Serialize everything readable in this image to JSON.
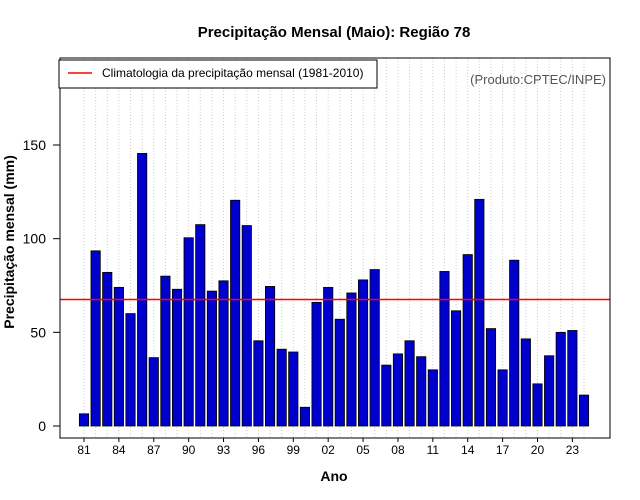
{
  "chart_data": {
    "type": "bar",
    "title": "Precipitação Mensal (Maio): Região 78",
    "xlabel": "Ano",
    "ylabel": "Precipitação mensal (mm)",
    "source_note": "(Produto:CPTEC/INPE)",
    "legend_label": "Climatologia da precipitação mensal (1981-2010)",
    "legend_position": "top-left",
    "climatology": 67.5,
    "ylim": [
      0,
      190
    ],
    "y_ticks": [
      0,
      50,
      100,
      150
    ],
    "grid": "vertical dotted",
    "categories": [
      "81",
      "82",
      "83",
      "84",
      "85",
      "86",
      "87",
      "88",
      "89",
      "90",
      "91",
      "92",
      "93",
      "94",
      "95",
      "96",
      "97",
      "98",
      "99",
      "00",
      "01",
      "02",
      "03",
      "04",
      "05",
      "06",
      "07",
      "08",
      "09",
      "10",
      "11",
      "12",
      "13",
      "14",
      "15",
      "16",
      "17",
      "18",
      "19",
      "20",
      "21",
      "22",
      "23",
      "24"
    ],
    "x_tick_labels": [
      "81",
      "84",
      "87",
      "90",
      "93",
      "96",
      "99",
      "02",
      "05",
      "08",
      "11",
      "14",
      "17",
      "20",
      "23"
    ],
    "values": [
      6.5,
      93.5,
      82,
      74,
      60,
      145.5,
      36.5,
      80,
      73,
      100.5,
      107.5,
      72,
      77.5,
      120.5,
      107,
      45.5,
      74.5,
      41,
      39.5,
      10,
      66,
      74,
      57,
      71,
      78,
      83.5,
      32.5,
      38.5,
      45.5,
      37,
      30,
      82.5,
      61.5,
      91.5,
      121,
      52,
      30,
      88.5,
      46.5,
      22.5,
      37.5,
      50,
      51,
      16.5
    ],
    "colors": {
      "bar_fill": "#0000cd",
      "bar_stroke": "#000000",
      "climatology_line": "#ff0000",
      "grid": "#cccccc",
      "source_note": "#555555"
    }
  }
}
